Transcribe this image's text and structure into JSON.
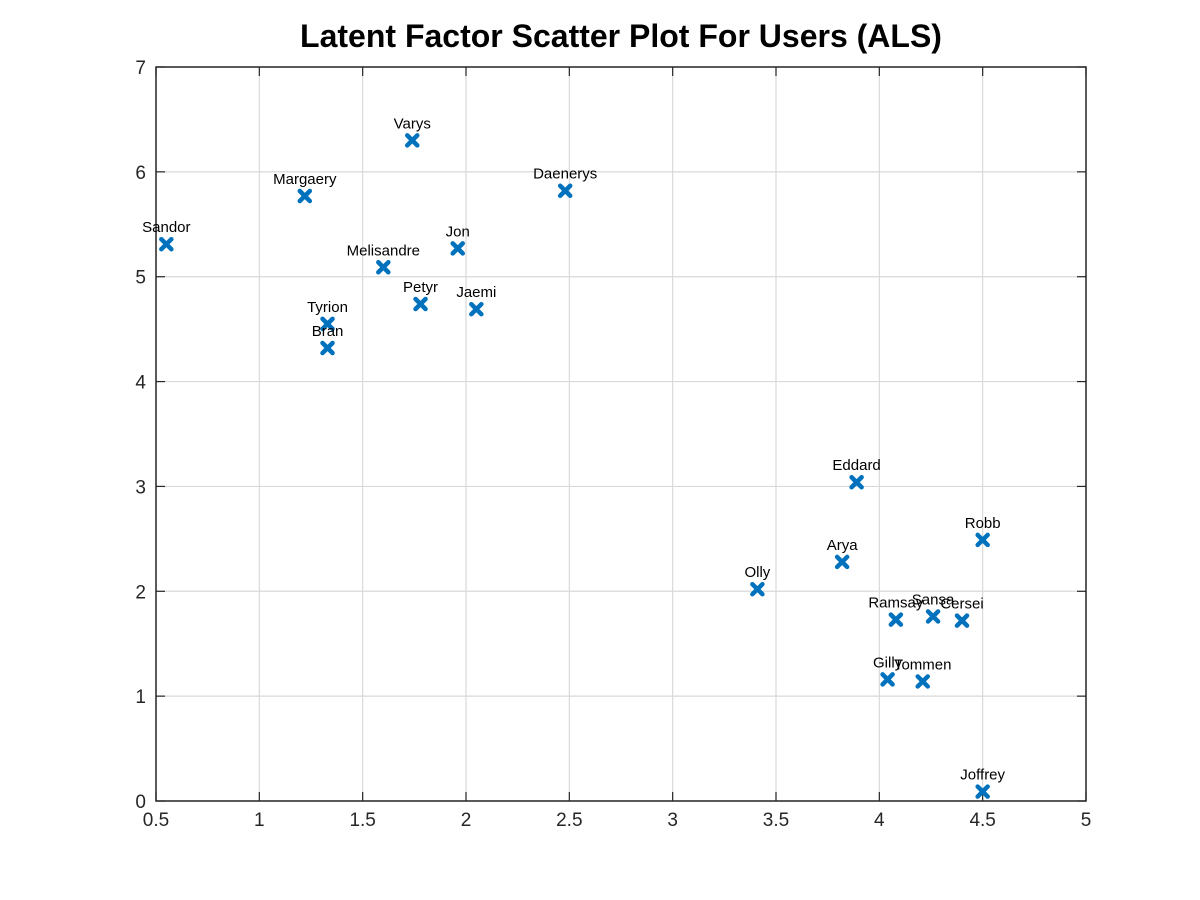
{
  "chart_data": {
    "type": "scatter",
    "title": "Latent Factor Scatter Plot For Users (ALS)",
    "xlabel": "",
    "ylabel": "",
    "xlim": [
      0.5,
      5
    ],
    "ylim": [
      0,
      7
    ],
    "x_ticks": [
      "0.5",
      "1",
      "1.5",
      "2",
      "2.5",
      "3",
      "3.5",
      "4",
      "4.5",
      "5"
    ],
    "y_ticks": [
      "0",
      "1",
      "2",
      "3",
      "4",
      "5",
      "6",
      "7"
    ],
    "grid": true,
    "marker": "x",
    "marker_color": "#0072bd",
    "points": [
      {
        "label": "Sandor",
        "x": 0.55,
        "y": 5.31
      },
      {
        "label": "Margaery",
        "x": 1.22,
        "y": 5.77
      },
      {
        "label": "Varys",
        "x": 1.74,
        "y": 6.3
      },
      {
        "label": "Melisandre",
        "x": 1.6,
        "y": 5.09
      },
      {
        "label": "Jon",
        "x": 1.96,
        "y": 5.27
      },
      {
        "label": "Daenerys",
        "x": 2.48,
        "y": 5.82
      },
      {
        "label": "Tyrion",
        "x": 1.33,
        "y": 4.55
      },
      {
        "label": "Bran",
        "x": 1.33,
        "y": 4.32
      },
      {
        "label": "Petyr",
        "x": 1.78,
        "y": 4.74
      },
      {
        "label": "Jaemi",
        "x": 2.05,
        "y": 4.69
      },
      {
        "label": "Eddard",
        "x": 3.89,
        "y": 3.04
      },
      {
        "label": "Robb",
        "x": 4.5,
        "y": 2.49
      },
      {
        "label": "Arya",
        "x": 3.82,
        "y": 2.28
      },
      {
        "label": "Olly",
        "x": 3.41,
        "y": 2.02
      },
      {
        "label": "Sansa",
        "x": 4.26,
        "y": 1.76
      },
      {
        "label": "Ramsay",
        "x": 4.08,
        "y": 1.73
      },
      {
        "label": "Cersei",
        "x": 4.4,
        "y": 1.72
      },
      {
        "label": "Gilly",
        "x": 4.04,
        "y": 1.16
      },
      {
        "label": "Tommen",
        "x": 4.21,
        "y": 1.14
      },
      {
        "label": "Joffrey",
        "x": 4.5,
        "y": 0.09
      }
    ]
  },
  "colors": {
    "marker": "#0072bd",
    "axis": "#262626",
    "grid": "#d9d9d9"
  }
}
